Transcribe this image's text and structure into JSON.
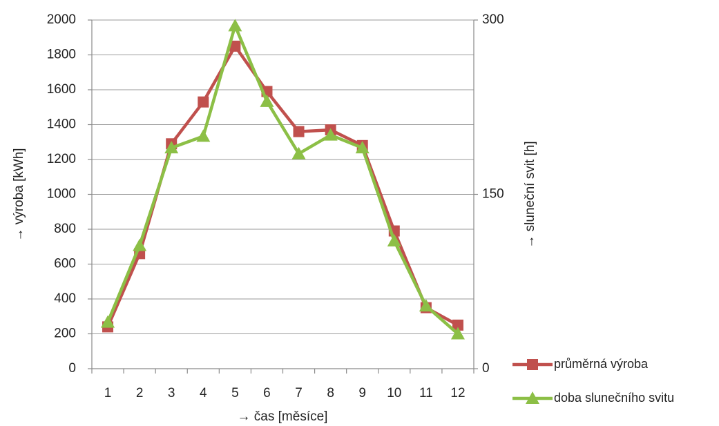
{
  "chart_data": {
    "type": "line",
    "x_label": "→ čas [měsíce]",
    "y_label": "→ výroba  [kWh]",
    "y2_label": "→ sluneční svit  [h]",
    "categories": [
      "1",
      "2",
      "3",
      "4",
      "5",
      "6",
      "7",
      "8",
      "9",
      "10",
      "11",
      "12"
    ],
    "ylim": [
      0,
      2000
    ],
    "yticks": [
      0,
      200,
      400,
      600,
      800,
      1000,
      1200,
      1400,
      1600,
      1800,
      2000
    ],
    "y2lim": [
      0,
      300
    ],
    "y2ticks": [
      0,
      150,
      300
    ],
    "grid": true,
    "legend": "bottom-right",
    "series": [
      {
        "name": "průměrná výroba",
        "color": "#c0504d",
        "marker": "square",
        "values": [
          240,
          660,
          1290,
          1530,
          1850,
          1590,
          1360,
          1370,
          1280,
          790,
          350,
          250
        ]
      },
      {
        "name": "doba slunečního svitu",
        "color": "#8cbf46",
        "marker": "triangle",
        "axis": "y2",
        "values": [
          40,
          106,
          190,
          200,
          295,
          230,
          185,
          201,
          190,
          110,
          54,
          30
        ]
      }
    ]
  }
}
